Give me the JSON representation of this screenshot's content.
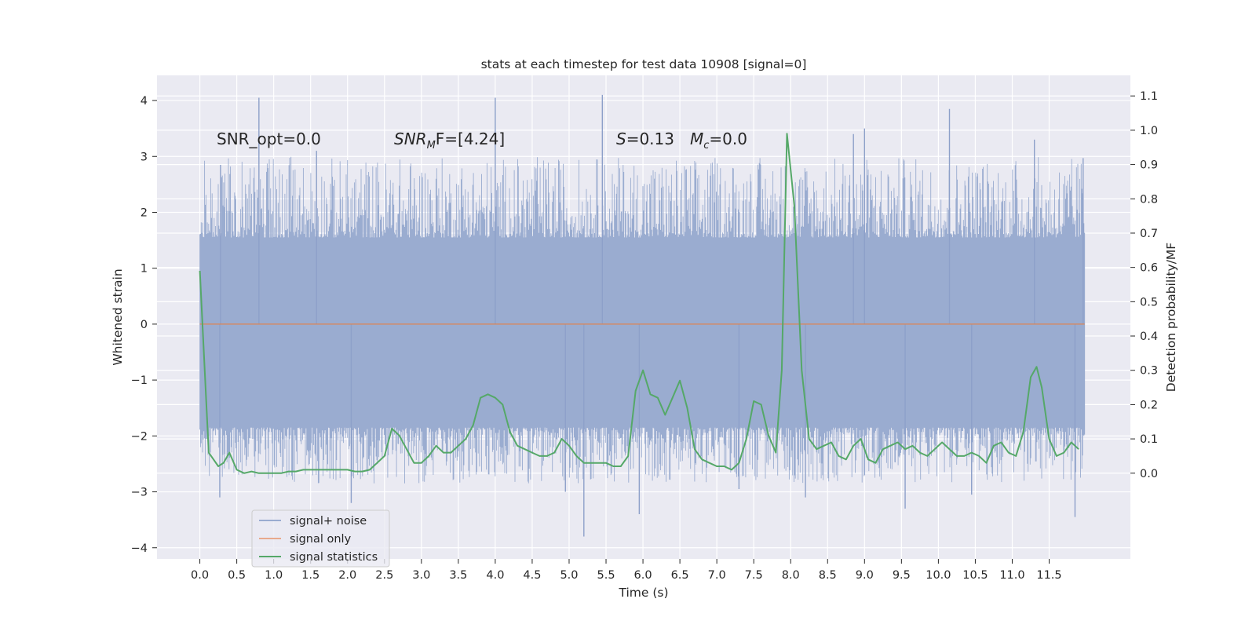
{
  "chart_data": {
    "type": "line",
    "title": "stats at each timestep for test data 10908 [signal=0]",
    "xlabel": "Time (s)",
    "ylabel": "Whitened strain",
    "y2label": "Detection probability/MF",
    "xlim": [
      -0.58,
      12.6
    ],
    "ylim": [
      -4.2,
      4.45
    ],
    "y2lim": [
      -0.25,
      1.16
    ],
    "xticks": [
      0.0,
      0.5,
      1.0,
      1.5,
      2.0,
      2.5,
      3.0,
      3.5,
      4.0,
      4.5,
      5.0,
      5.5,
      6.0,
      6.5,
      7.0,
      7.5,
      8.0,
      8.5,
      9.0,
      9.5,
      10.0,
      10.5,
      11.0,
      11.5
    ],
    "xtick_labels": [
      "0.0",
      "0.5",
      "1.0",
      "1.5",
      "2.0",
      "2.5",
      "3.0",
      "3.5",
      "4.0",
      "4.5",
      "5.0",
      "5.5",
      "6.0",
      "6.5",
      "7.0",
      "7.5",
      "8.0",
      "8.5",
      "9.0",
      "9.5",
      "10.0",
      "10.5",
      "11.0",
      "11.5"
    ],
    "yticks": [
      -4,
      -3,
      -2,
      -1,
      0,
      1,
      2,
      3,
      4
    ],
    "ytick_labels": [
      "−4",
      "−3",
      "−2",
      "−1",
      "0",
      "1",
      "2",
      "3",
      "4"
    ],
    "y2ticks": [
      0.0,
      0.1,
      0.2,
      0.3,
      0.4,
      0.5,
      0.6,
      0.7,
      0.8,
      0.9,
      1.0,
      1.1
    ],
    "y2tick_labels": [
      "0.0",
      "0.1",
      "0.2",
      "0.3",
      "0.4",
      "0.5",
      "0.6",
      "0.7",
      "0.8",
      "0.9",
      "1.0",
      "1.1"
    ],
    "grid": true,
    "legend_position": "lower-left",
    "series": [
      {
        "name": "signal+ noise",
        "axis": "left",
        "color": "#4c72b0",
        "style": "dense noise band",
        "x_range": [
          0.0,
          11.98
        ],
        "core_range": [
          -1.75,
          1.4
        ],
        "spike_peaks_up": [
          [
            0.8,
            4.05
          ],
          [
            4.0,
            4.05
          ],
          [
            5.45,
            4.1
          ],
          [
            10.15,
            3.85
          ],
          [
            11.3,
            3.3
          ],
          [
            11.96,
            2.97
          ],
          [
            9.0,
            3.5
          ],
          [
            8.85,
            3.4
          ],
          [
            0.28,
            2.85
          ],
          [
            1.58,
            3.1
          ]
        ],
        "spike_peaks_down": [
          [
            5.2,
            -3.8
          ],
          [
            5.95,
            -3.4
          ],
          [
            9.55,
            -3.3
          ],
          [
            11.85,
            -3.45
          ],
          [
            2.05,
            -3.2
          ],
          [
            0.27,
            -3.1
          ],
          [
            4.95,
            -3.0
          ],
          [
            7.3,
            -2.95
          ],
          [
            10.45,
            -3.05
          ],
          [
            8.2,
            -3.1
          ]
        ]
      },
      {
        "name": "signal only",
        "axis": "left",
        "color": "#dd8452",
        "x": [
          0.0,
          11.98
        ],
        "y": [
          0.0,
          0.0
        ]
      },
      {
        "name": "signal statistics",
        "axis": "right",
        "color": "#55a868",
        "x": [
          0.0,
          0.12,
          0.25,
          0.32,
          0.4,
          0.5,
          0.6,
          0.7,
          0.8,
          0.9,
          1.0,
          1.1,
          1.2,
          1.3,
          1.4,
          1.5,
          1.6,
          1.7,
          1.8,
          1.9,
          2.0,
          2.1,
          2.2,
          2.3,
          2.4,
          2.5,
          2.6,
          2.7,
          2.8,
          2.9,
          3.0,
          3.1,
          3.2,
          3.3,
          3.4,
          3.5,
          3.6,
          3.7,
          3.8,
          3.9,
          4.0,
          4.1,
          4.2,
          4.3,
          4.4,
          4.5,
          4.6,
          4.7,
          4.8,
          4.9,
          5.0,
          5.1,
          5.2,
          5.3,
          5.4,
          5.5,
          5.6,
          5.7,
          5.8,
          5.9,
          6.0,
          6.1,
          6.2,
          6.3,
          6.4,
          6.5,
          6.6,
          6.7,
          6.8,
          6.9,
          7.0,
          7.1,
          7.2,
          7.3,
          7.4,
          7.5,
          7.6,
          7.7,
          7.8,
          7.88,
          7.95,
          8.05,
          8.15,
          8.25,
          8.35,
          8.45,
          8.55,
          8.65,
          8.75,
          8.85,
          8.95,
          9.05,
          9.15,
          9.25,
          9.35,
          9.45,
          9.55,
          9.65,
          9.75,
          9.85,
          9.95,
          10.05,
          10.15,
          10.25,
          10.35,
          10.45,
          10.55,
          10.65,
          10.75,
          10.85,
          10.95,
          11.05,
          11.15,
          11.25,
          11.33,
          11.4,
          11.5,
          11.6,
          11.7,
          11.8,
          11.9
        ],
        "y": [
          0.59,
          0.06,
          0.02,
          0.03,
          0.06,
          0.01,
          0.0,
          0.005,
          0.0,
          0.0,
          0.0,
          0.0,
          0.005,
          0.005,
          0.01,
          0.01,
          0.01,
          0.01,
          0.01,
          0.01,
          0.01,
          0.005,
          0.005,
          0.01,
          0.03,
          0.05,
          0.13,
          0.11,
          0.07,
          0.03,
          0.03,
          0.05,
          0.08,
          0.06,
          0.06,
          0.08,
          0.1,
          0.14,
          0.22,
          0.23,
          0.22,
          0.2,
          0.12,
          0.08,
          0.07,
          0.06,
          0.05,
          0.05,
          0.06,
          0.1,
          0.08,
          0.05,
          0.03,
          0.03,
          0.03,
          0.03,
          0.02,
          0.02,
          0.05,
          0.24,
          0.3,
          0.23,
          0.22,
          0.17,
          0.22,
          0.27,
          0.19,
          0.07,
          0.04,
          0.03,
          0.02,
          0.02,
          0.01,
          0.03,
          0.1,
          0.21,
          0.2,
          0.11,
          0.06,
          0.3,
          0.99,
          0.78,
          0.3,
          0.1,
          0.07,
          0.08,
          0.09,
          0.05,
          0.04,
          0.08,
          0.1,
          0.04,
          0.03,
          0.07,
          0.08,
          0.09,
          0.07,
          0.08,
          0.06,
          0.05,
          0.07,
          0.09,
          0.07,
          0.05,
          0.05,
          0.06,
          0.05,
          0.03,
          0.08,
          0.09,
          0.06,
          0.05,
          0.12,
          0.28,
          0.31,
          0.25,
          0.1,
          0.05,
          0.06,
          0.09,
          0.07
        ]
      }
    ],
    "annotations": {
      "snr_opt": "SNR_opt=0.0",
      "snr_mf_main": "SNR",
      "snr_mf_sub": "M",
      "snr_mf_rest": "F=[4.24]",
      "s_symbol": "S",
      "s_value": "=0.13",
      "mc_symbol": "M",
      "mc_sub": "c",
      "mc_value": "=0.0"
    }
  },
  "legend": {
    "items": [
      {
        "label": "signal+ noise",
        "color": "#9aacd0"
      },
      {
        "label": "signal only",
        "color": "#e8a98d"
      },
      {
        "label": "signal statistics",
        "color": "#55a868"
      }
    ]
  },
  "colors": {
    "axes_background": "#eaeaf2",
    "grid": "#ffffff",
    "noise": "#9aacd0",
    "noise_spikes": "#8da0c9"
  }
}
